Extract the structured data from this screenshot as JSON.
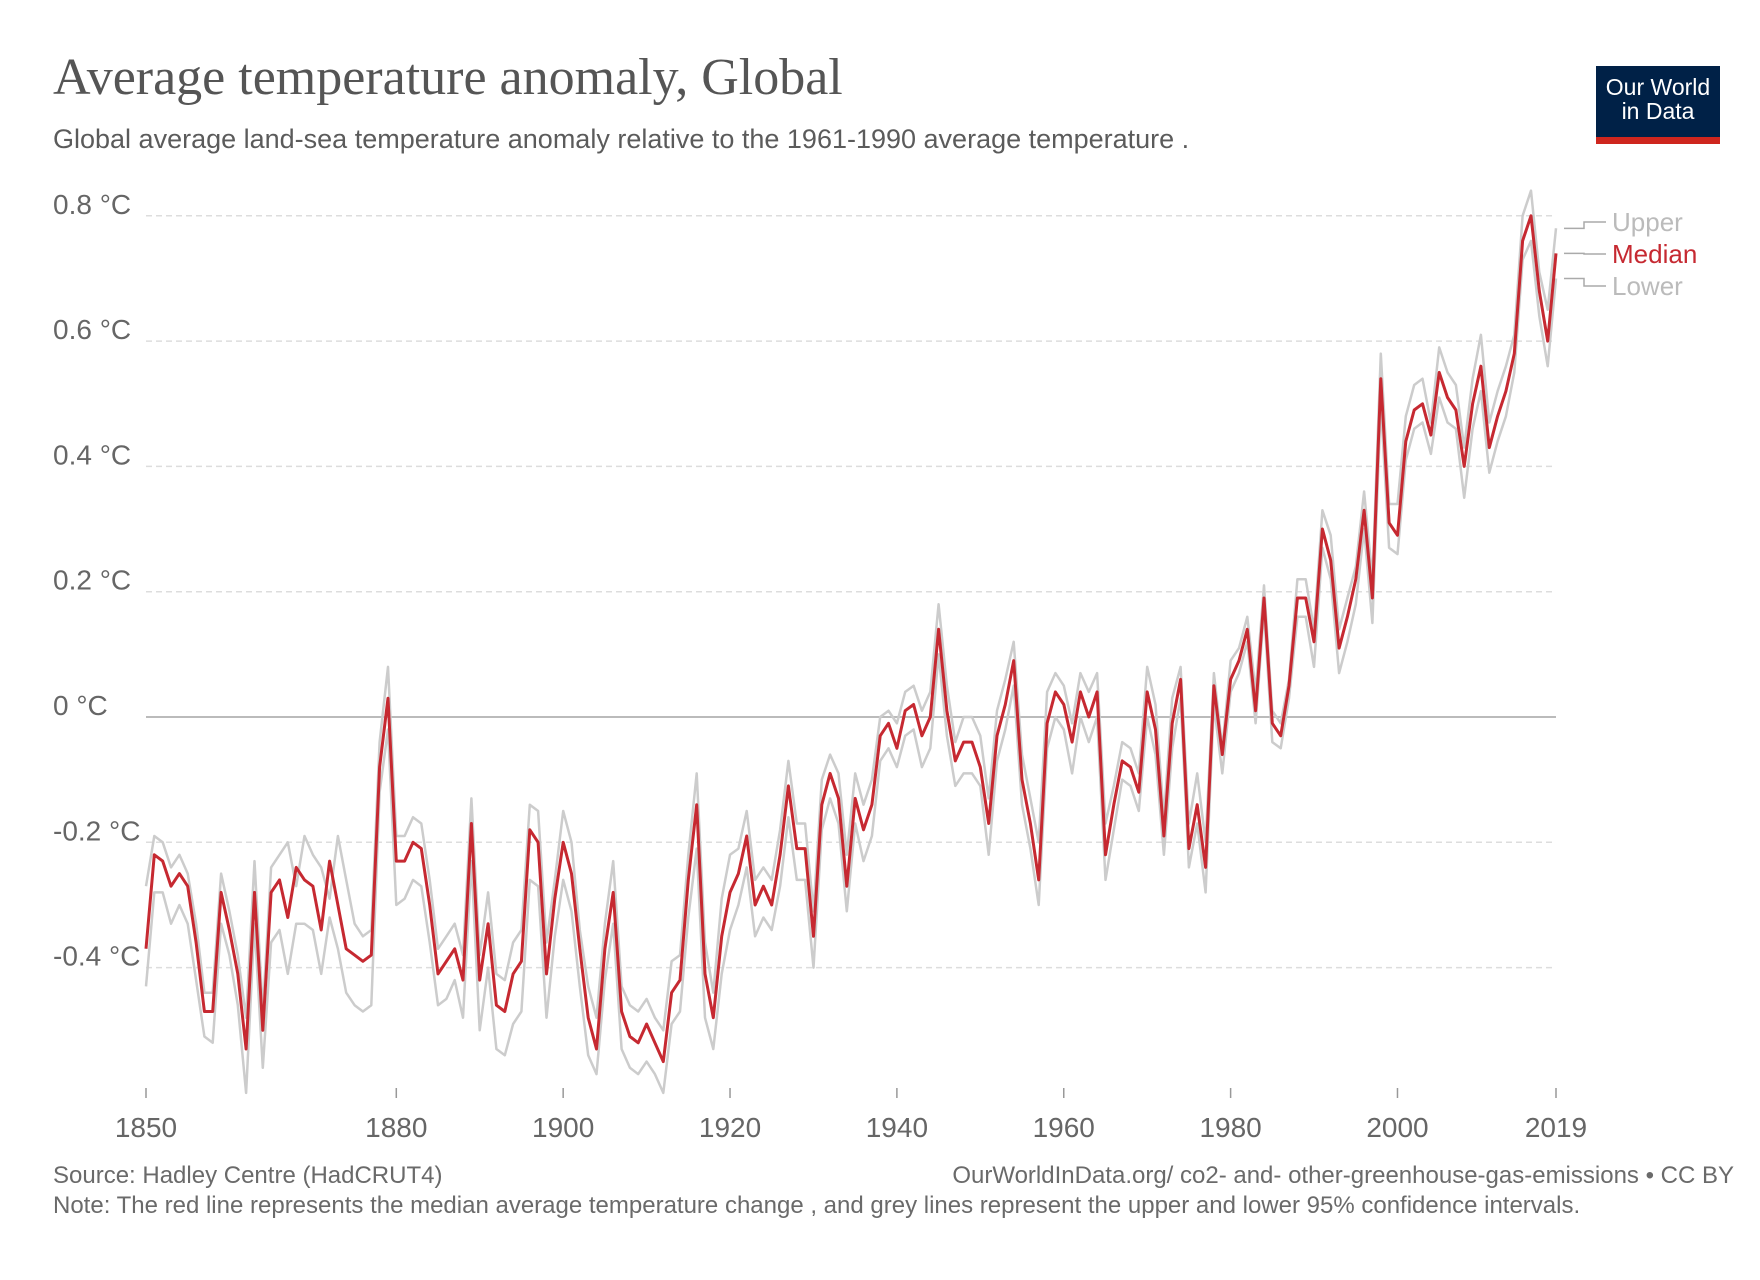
{
  "header": {
    "title": "Average temperature anomaly, Global",
    "subtitle": "Global average land-sea temperature anomaly relative to the 1961-1990 average temperature ."
  },
  "logo": {
    "line1": "Our World",
    "line2": "in Data"
  },
  "footer": {
    "source": "Source: Hadley Centre (HadCRUT4)",
    "url": "OurWorldInData.org/ co2- and- other-greenhouse-gas-emissions • CC BY",
    "note": "Note: The red line represents the median average temperature change , and grey lines represent the upper and lower 95% confidence intervals."
  },
  "colors": {
    "median": "#c62931",
    "bounds": "#cccccc",
    "grid": "#dddddd",
    "zero": "#bbbbbb"
  },
  "chart_data": {
    "type": "line",
    "xlim": [
      1850,
      2019
    ],
    "ylim": [
      -0.6,
      0.85
    ],
    "y_ticks": [
      0.8,
      0.6,
      0.4,
      0.2,
      0,
      -0.2,
      -0.4
    ],
    "y_tick_labels": [
      "0.8 °C",
      "0.6 °C",
      "0.4 °C",
      "0.2 °C",
      "0 °C",
      "-0.2 °C",
      "-0.4 °C"
    ],
    "x_ticks": [
      1850,
      1880,
      1900,
      1920,
      1940,
      1960,
      1980,
      2000,
      2019
    ],
    "x_tick_labels": [
      "1850",
      "1880",
      "1900",
      "1920",
      "1940",
      "1960",
      "1980",
      "2000",
      "2019"
    ],
    "grid": true,
    "legend_placement": "right",
    "series": [
      {
        "name": "Upper",
        "values": [
          -0.27,
          -0.19,
          -0.2,
          -0.24,
          -0.22,
          -0.25,
          -0.33,
          -0.44,
          -0.44,
          -0.25,
          -0.31,
          -0.38,
          -0.48,
          -0.23,
          -0.47,
          -0.24,
          -0.22,
          -0.2,
          -0.27,
          -0.19,
          -0.22,
          -0.24,
          -0.29,
          -0.19,
          -0.26,
          -0.33,
          -0.35,
          -0.34,
          -0.04,
          0.08,
          -0.19,
          -0.19,
          -0.16,
          -0.17,
          -0.26,
          -0.37,
          -0.35,
          -0.33,
          -0.38,
          -0.13,
          -0.38,
          -0.28,
          -0.41,
          -0.42,
          -0.36,
          -0.34,
          -0.14,
          -0.15,
          -0.36,
          -0.26,
          -0.15,
          -0.2,
          -0.34,
          -0.43,
          -0.48,
          -0.33,
          -0.23,
          -0.43,
          -0.46,
          -0.47,
          -0.45,
          -0.48,
          -0.5,
          -0.39,
          -0.38,
          -0.22,
          -0.09,
          -0.36,
          -0.44,
          -0.29,
          -0.22,
          -0.21,
          -0.15,
          -0.26,
          -0.24,
          -0.26,
          -0.18,
          -0.07,
          -0.17,
          -0.17,
          -0.31,
          -0.1,
          -0.06,
          -0.09,
          -0.22,
          -0.09,
          -0.14,
          -0.1,
          0,
          0.01,
          -0.01,
          0.04,
          0.05,
          0.01,
          0.04,
          0.18,
          0.05,
          -0.04,
          0,
          0,
          -0.03,
          -0.13,
          0.01,
          0.06,
          0.12,
          -0.06,
          -0.13,
          -0.2,
          0.04,
          0.07,
          0.05,
          -0.01,
          0.07,
          0.04,
          0.07,
          -0.17,
          -0.11,
          -0.04,
          -0.05,
          -0.09,
          0.08,
          0.02,
          -0.16,
          0.03,
          0.08,
          -0.17,
          -0.09,
          -0.2,
          0.07,
          -0.05,
          0.09,
          0.11,
          0.16,
          0.04,
          0.21,
          0.01,
          -0.01,
          0.06,
          0.22,
          0.22,
          0.14,
          0.33,
          0.29,
          0.14,
          0.19,
          0.24,
          0.36,
          0.22,
          0.58,
          0.34,
          0.34,
          0.48,
          0.53,
          0.54,
          0.47,
          0.59,
          0.55,
          0.53,
          0.43,
          0.54,
          0.61,
          0.47,
          0.52,
          0.56,
          0.61,
          0.8,
          0.84,
          0.71,
          0.65,
          0.78
        ]
      },
      {
        "name": "Median",
        "values": [
          -0.37,
          -0.22,
          -0.23,
          -0.27,
          -0.25,
          -0.27,
          -0.36,
          -0.47,
          -0.47,
          -0.28,
          -0.34,
          -0.41,
          -0.53,
          -0.28,
          -0.5,
          -0.28,
          -0.26,
          -0.32,
          -0.24,
          -0.26,
          -0.27,
          -0.34,
          -0.23,
          -0.3,
          -0.37,
          -0.38,
          -0.39,
          -0.38,
          -0.08,
          0.03,
          -0.23,
          -0.23,
          -0.2,
          -0.21,
          -0.3,
          -0.41,
          -0.39,
          -0.37,
          -0.42,
          -0.17,
          -0.42,
          -0.33,
          -0.46,
          -0.47,
          -0.41,
          -0.39,
          -0.18,
          -0.2,
          -0.41,
          -0.29,
          -0.2,
          -0.25,
          -0.37,
          -0.48,
          -0.53,
          -0.37,
          -0.28,
          -0.47,
          -0.51,
          -0.52,
          -0.49,
          -0.52,
          -0.55,
          -0.44,
          -0.42,
          -0.26,
          -0.14,
          -0.41,
          -0.48,
          -0.35,
          -0.28,
          -0.25,
          -0.19,
          -0.3,
          -0.27,
          -0.3,
          -0.22,
          -0.11,
          -0.21,
          -0.21,
          -0.35,
          -0.14,
          -0.09,
          -0.13,
          -0.27,
          -0.13,
          -0.18,
          -0.14,
          -0.03,
          -0.01,
          -0.05,
          0.01,
          0.02,
          -0.03,
          0,
          0.14,
          0.01,
          -0.07,
          -0.04,
          -0.04,
          -0.08,
          -0.17,
          -0.03,
          0.02,
          0.09,
          -0.1,
          -0.17,
          -0.26,
          -0.01,
          0.04,
          0.02,
          -0.04,
          0.04,
          0,
          0.04,
          -0.22,
          -0.14,
          -0.07,
          -0.08,
          -0.12,
          0.04,
          -0.02,
          -0.19,
          -0.01,
          0.06,
          -0.21,
          -0.14,
          -0.24,
          0.05,
          -0.06,
          0.06,
          0.09,
          0.14,
          0.01,
          0.19,
          -0.01,
          -0.03,
          0.05,
          0.19,
          0.19,
          0.12,
          0.3,
          0.25,
          0.11,
          0.16,
          0.22,
          0.33,
          0.19,
          0.54,
          0.31,
          0.29,
          0.44,
          0.49,
          0.5,
          0.45,
          0.55,
          0.51,
          0.49,
          0.4,
          0.5,
          0.56,
          0.43,
          0.48,
          0.52,
          0.58,
          0.76,
          0.8,
          0.68,
          0.6,
          0.74
        ]
      },
      {
        "name": "Lower",
        "values": [
          -0.43,
          -0.28,
          -0.28,
          -0.33,
          -0.3,
          -0.33,
          -0.42,
          -0.51,
          -0.52,
          -0.33,
          -0.38,
          -0.46,
          -0.6,
          -0.33,
          -0.56,
          -0.36,
          -0.34,
          -0.41,
          -0.33,
          -0.33,
          -0.34,
          -0.41,
          -0.32,
          -0.37,
          -0.44,
          -0.46,
          -0.47,
          -0.46,
          -0.12,
          -0.02,
          -0.3,
          -0.29,
          -0.26,
          -0.27,
          -0.36,
          -0.46,
          -0.45,
          -0.42,
          -0.48,
          -0.23,
          -0.5,
          -0.4,
          -0.53,
          -0.54,
          -0.49,
          -0.47,
          -0.26,
          -0.27,
          -0.48,
          -0.35,
          -0.26,
          -0.31,
          -0.43,
          -0.54,
          -0.57,
          -0.42,
          -0.33,
          -0.53,
          -0.56,
          -0.57,
          -0.55,
          -0.57,
          -0.6,
          -0.49,
          -0.47,
          -0.32,
          -0.21,
          -0.48,
          -0.53,
          -0.41,
          -0.34,
          -0.3,
          -0.24,
          -0.35,
          -0.32,
          -0.34,
          -0.27,
          -0.16,
          -0.26,
          -0.26,
          -0.4,
          -0.18,
          -0.13,
          -0.17,
          -0.31,
          -0.17,
          -0.23,
          -0.19,
          -0.07,
          -0.05,
          -0.08,
          -0.03,
          -0.02,
          -0.08,
          -0.05,
          0.1,
          -0.03,
          -0.11,
          -0.09,
          -0.09,
          -0.11,
          -0.22,
          -0.07,
          -0.02,
          0.05,
          -0.14,
          -0.21,
          -0.3,
          -0.05,
          0,
          -0.02,
          -0.09,
          0,
          -0.04,
          0,
          -0.26,
          -0.18,
          -0.1,
          -0.11,
          -0.15,
          0,
          -0.06,
          -0.22,
          -0.05,
          0.03,
          -0.24,
          -0.17,
          -0.28,
          0.02,
          -0.09,
          0.04,
          0.07,
          0.12,
          -0.01,
          0.17,
          -0.04,
          -0.05,
          0.03,
          0.16,
          0.16,
          0.08,
          0.27,
          0.22,
          0.07,
          0.12,
          0.18,
          0.3,
          0.15,
          0.5,
          0.27,
          0.26,
          0.41,
          0.46,
          0.47,
          0.42,
          0.51,
          0.47,
          0.46,
          0.35,
          0.46,
          0.52,
          0.39,
          0.44,
          0.48,
          0.55,
          0.73,
          0.76,
          0.64,
          0.56,
          0.7
        ]
      }
    ]
  }
}
